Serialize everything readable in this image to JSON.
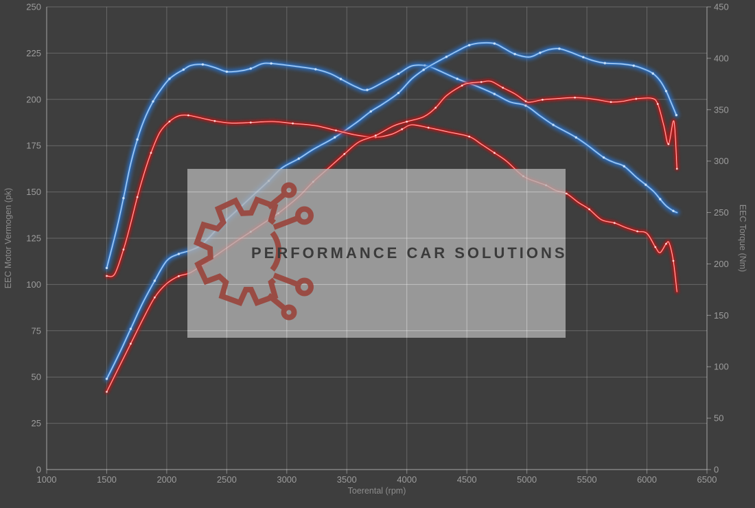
{
  "page": {
    "background": "#3e3e3e"
  },
  "watermark": {
    "text": "PERFORMANCE CAR SOLUTIONS",
    "box_color": "#b2b2b2",
    "box_opacity": 0.78,
    "logo_color": "#9a443c",
    "text_color": "#3b3b3b",
    "logo_name": "gear-circuit-logo"
  },
  "style": {
    "grid_color": "rgba(255,255,255,0.22)",
    "grid_over_watermark_color": "rgba(255,255,255,0.32)",
    "axis_color": "rgba(255,255,255,0.40)",
    "tick_label_color": "#9d9d9d",
    "axis_title_color": "#8d8d8d"
  },
  "chart_data": {
    "type": "line",
    "title": "",
    "xlabel": "Toerental (rpm)",
    "ylabel_left": "EEC Motor Vermogen (pk)",
    "ylabel_right": "EEC Torque (Nm)",
    "x_range": [
      1000,
      6500
    ],
    "y_left_range": [
      0,
      250
    ],
    "y_right_range": [
      0,
      450
    ],
    "x_ticks": [
      1000,
      1500,
      2000,
      2500,
      3000,
      3500,
      4000,
      4500,
      5000,
      5500,
      6000,
      6500
    ],
    "y_left_ticks": [
      0,
      25,
      50,
      75,
      100,
      125,
      150,
      175,
      200,
      225,
      250
    ],
    "y_right_ticks": [
      0,
      50,
      100,
      150,
      200,
      250,
      300,
      350,
      400,
      450
    ],
    "grid": true,
    "legend": "none",
    "series": [
      {
        "name": "blue-torque",
        "axis": "right",
        "unit": "Nm",
        "color": "#4186d4",
        "core": "#c8e0f8",
        "glow": "#2a6fc4",
        "width": 3,
        "glow_width": 8,
        "points": [
          [
            1500,
            196
          ],
          [
            1583,
            234
          ],
          [
            1640,
            264
          ],
          [
            1697,
            296
          ],
          [
            1755,
            321
          ],
          [
            1812,
            340
          ],
          [
            1886,
            358
          ],
          [
            1966,
            372
          ],
          [
            2023,
            380
          ],
          [
            2080,
            385
          ],
          [
            2140,
            389
          ],
          [
            2200,
            393
          ],
          [
            2300,
            394
          ],
          [
            2400,
            391
          ],
          [
            2500,
            387
          ],
          [
            2600,
            387.5
          ],
          [
            2700,
            390
          ],
          [
            2790,
            394.5
          ],
          [
            2870,
            395
          ],
          [
            3050,
            392.5
          ],
          [
            3240,
            389.3
          ],
          [
            3360,
            385.2
          ],
          [
            3450,
            379.8
          ],
          [
            3580,
            372
          ],
          [
            3670,
            369.2
          ],
          [
            3800,
            376.5
          ],
          [
            3930,
            385
          ],
          [
            4040,
            392.5
          ],
          [
            4150,
            393
          ],
          [
            4230,
            390
          ],
          [
            4420,
            380
          ],
          [
            4600,
            372
          ],
          [
            4730,
            365.3
          ],
          [
            4860,
            357.5
          ],
          [
            4990,
            354
          ],
          [
            5110,
            344
          ],
          [
            5220,
            335.2
          ],
          [
            5310,
            329.5
          ],
          [
            5410,
            323
          ],
          [
            5510,
            315
          ],
          [
            5640,
            303.5
          ],
          [
            5730,
            298.5
          ],
          [
            5810,
            295
          ],
          [
            5910,
            284.5
          ],
          [
            5990,
            277
          ],
          [
            6060,
            270
          ],
          [
            6110,
            263
          ],
          [
            6160,
            256.5
          ],
          [
            6220,
            251.5
          ],
          [
            6250,
            250
          ]
        ]
      },
      {
        "name": "blue-power",
        "axis": "left",
        "unit": "pk",
        "color": "#4186d4",
        "core": "#c8e0f8",
        "glow": "#2a6fc4",
        "width": 3,
        "glow_width": 8,
        "points": [
          [
            1500,
            49
          ],
          [
            1600,
            62
          ],
          [
            1700,
            76
          ],
          [
            1800,
            90
          ],
          [
            1900,
            102
          ],
          [
            2000,
            112.8
          ],
          [
            2100,
            116.5
          ],
          [
            2200,
            118.5
          ],
          [
            2300,
            122
          ],
          [
            2450,
            132
          ],
          [
            2600,
            141
          ],
          [
            2750,
            150
          ],
          [
            2850,
            156
          ],
          [
            2960,
            163
          ],
          [
            3100,
            168
          ],
          [
            3220,
            173
          ],
          [
            3400,
            179.5
          ],
          [
            3580,
            187.5
          ],
          [
            3700,
            193.5
          ],
          [
            3800,
            197.5
          ],
          [
            3930,
            203.5
          ],
          [
            4040,
            211
          ],
          [
            4140,
            216
          ],
          [
            4230,
            219.5
          ],
          [
            4330,
            223
          ],
          [
            4430,
            226.5
          ],
          [
            4520,
            229.3
          ],
          [
            4620,
            230.5
          ],
          [
            4730,
            230.2
          ],
          [
            4810,
            227.6
          ],
          [
            4900,
            224.5
          ],
          [
            5020,
            222.9
          ],
          [
            5110,
            225.2
          ],
          [
            5190,
            227
          ],
          [
            5270,
            227.4
          ],
          [
            5360,
            225.6
          ],
          [
            5470,
            222.8
          ],
          [
            5560,
            220.8
          ],
          [
            5650,
            219.6
          ],
          [
            5780,
            219.2
          ],
          [
            5890,
            218.2
          ],
          [
            5980,
            216.3
          ],
          [
            6050,
            214
          ],
          [
            6110,
            210
          ],
          [
            6160,
            204.5
          ],
          [
            6200,
            198.5
          ],
          [
            6245,
            191.5
          ]
        ]
      },
      {
        "name": "red-torque",
        "axis": "right",
        "unit": "Nm",
        "color": "#e22b2b",
        "core": "#ffd6d6",
        "glow": "#b81515",
        "width": 2.2,
        "glow_width": 6,
        "points": [
          [
            1500,
            188.3
          ],
          [
            1566,
            190
          ],
          [
            1640,
            214
          ],
          [
            1697,
            238
          ],
          [
            1755,
            265
          ],
          [
            1812,
            288
          ],
          [
            1869,
            308
          ],
          [
            1943,
            328
          ],
          [
            2023,
            338.5
          ],
          [
            2100,
            344
          ],
          [
            2180,
            344.5
          ],
          [
            2300,
            341.5
          ],
          [
            2400,
            339
          ],
          [
            2530,
            337
          ],
          [
            2700,
            337.5
          ],
          [
            2880,
            338.5
          ],
          [
            3050,
            336.6
          ],
          [
            3240,
            334.4
          ],
          [
            3410,
            329.8
          ],
          [
            3580,
            325.3
          ],
          [
            3740,
            323.2
          ],
          [
            3870,
            326
          ],
          [
            3960,
            331
          ],
          [
            4040,
            335.3
          ],
          [
            4180,
            332.5
          ],
          [
            4340,
            328.5
          ],
          [
            4520,
            323.8
          ],
          [
            4620,
            316.5
          ],
          [
            4730,
            308
          ],
          [
            4830,
            300
          ],
          [
            4970,
            285.3
          ],
          [
            5100,
            279
          ],
          [
            5160,
            276.5
          ],
          [
            5240,
            271.5
          ],
          [
            5330,
            268.4
          ],
          [
            5430,
            259.7
          ],
          [
            5520,
            253.1
          ],
          [
            5620,
            243
          ],
          [
            5730,
            239.8
          ],
          [
            5830,
            235.1
          ],
          [
            5920,
            231.7
          ],
          [
            6000,
            229.7
          ],
          [
            6070,
            216.4
          ],
          [
            6110,
            211
          ],
          [
            6160,
            219.6
          ],
          [
            6185,
            220.3
          ],
          [
            6220,
            203
          ],
          [
            6250,
            173
          ]
        ]
      },
      {
        "name": "red-power",
        "axis": "left",
        "unit": "pk",
        "color": "#e22b2b",
        "core": "#ffd6d6",
        "glow": "#b81515",
        "width": 2.2,
        "glow_width": 6,
        "points": [
          [
            1500,
            42
          ],
          [
            1600,
            55
          ],
          [
            1700,
            68
          ],
          [
            1800,
            81
          ],
          [
            1900,
            93
          ],
          [
            2000,
            100.5
          ],
          [
            2100,
            104.5
          ],
          [
            2200,
            106.5
          ],
          [
            2350,
            113
          ],
          [
            2550,
            122
          ],
          [
            2700,
            128.5
          ],
          [
            2850,
            135
          ],
          [
            2930,
            138.5
          ],
          [
            3100,
            147.5
          ],
          [
            3220,
            155.5
          ],
          [
            3350,
            163
          ],
          [
            3480,
            170.5
          ],
          [
            3600,
            177
          ],
          [
            3740,
            180.5
          ],
          [
            3890,
            185.7
          ],
          [
            4000,
            188
          ],
          [
            4140,
            190.6
          ],
          [
            4240,
            195.5
          ],
          [
            4330,
            202
          ],
          [
            4460,
            207.5
          ],
          [
            4520,
            208.8
          ],
          [
            4620,
            209.4
          ],
          [
            4700,
            209.8
          ],
          [
            4800,
            206.3
          ],
          [
            4900,
            203
          ],
          [
            4990,
            199
          ],
          [
            5030,
            198.5
          ],
          [
            5130,
            199.8
          ],
          [
            5250,
            200.4
          ],
          [
            5400,
            201
          ],
          [
            5550,
            200.2
          ],
          [
            5700,
            198.6
          ],
          [
            5800,
            199
          ],
          [
            5910,
            200.3
          ],
          [
            6040,
            200.6
          ],
          [
            6090,
            197.5
          ],
          [
            6140,
            186
          ],
          [
            6180,
            175.8
          ],
          [
            6225,
            188.2
          ],
          [
            6250,
            162.5
          ]
        ]
      }
    ]
  }
}
